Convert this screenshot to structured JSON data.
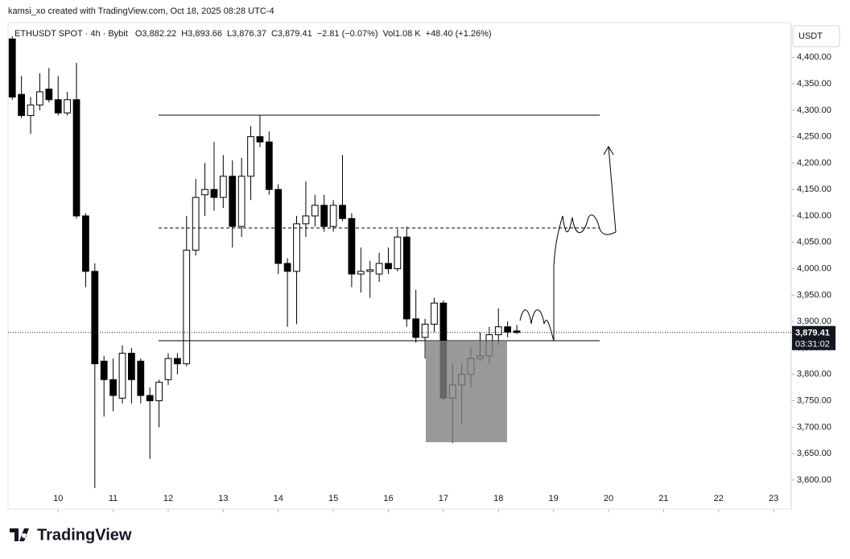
{
  "chart_data": {
    "type": "candlestick",
    "credit": "kamsi_xo created with TradingView.com, Oct 18, 2025 08:28 UTC-4",
    "title": "ETHUSDT SPOT · 4h · Bybit",
    "header_stats": [
      "O3,882.22",
      "H3,893.66",
      "L3,876.37",
      "C3,879.41",
      "−2.81 (−0.07%)",
      "Vol1.08 K",
      "+48.40 (+1.26%)"
    ],
    "currency": "USDT",
    "logo": "TradingView",
    "last_price": {
      "value": 3879.41,
      "label": "3,879.41"
    },
    "countdown": "03:31:02",
    "up_color": "#ffffff",
    "down_color": "#000000",
    "x": [
      9.1667,
      9.3333,
      9.5,
      9.6667,
      9.8333,
      10,
      10.1667,
      10.3333,
      10.5,
      10.6667,
      10.8333,
      11,
      11.1667,
      11.3333,
      11.5,
      11.6667,
      11.8333,
      12,
      12.1667,
      12.3333,
      12.5,
      12.6667,
      12.8333,
      13,
      13.1667,
      13.3333,
      13.5,
      13.6667,
      13.8333,
      14,
      14.1667,
      14.3333,
      14.5,
      14.6667,
      14.8333,
      15,
      15.1667,
      15.3333,
      15.5,
      15.6667,
      15.8333,
      16,
      16.1667,
      16.3333,
      16.5,
      16.6667,
      16.8333,
      17,
      17.1667,
      17.3333,
      17.5,
      17.6667,
      17.8333,
      18,
      18.1667,
      18.3333
    ],
    "open": [
      4435,
      4330,
      4290,
      4310,
      4340,
      4320,
      4295,
      4320,
      4100,
      3995,
      3825,
      3790,
      3755,
      3840,
      3825,
      3760,
      3750,
      3790,
      3830,
      3820,
      4035,
      4140,
      4150,
      4135,
      4175,
      4080,
      4175,
      4250,
      4240,
      4150,
      4010,
      3995,
      4085,
      4100,
      4120,
      4080,
      4120,
      4095,
      3990,
      3995,
      3990,
      4010,
      4000,
      4060,
      3905,
      3870,
      3895,
      3935,
      3755,
      3780,
      3800,
      3830,
      3835,
      3875,
      3890,
      3882.22
    ],
    "high": [
      4440,
      4365,
      4325,
      4370,
      4380,
      4365,
      4335,
      4390,
      4105,
      4010,
      3835,
      3830,
      3855,
      3850,
      3830,
      3775,
      3790,
      3840,
      3840,
      4100,
      4170,
      4200,
      4240,
      4215,
      4205,
      4210,
      4270,
      4290,
      4260,
      4160,
      4020,
      4100,
      4165,
      4140,
      4140,
      4130,
      4215,
      4105,
      4040,
      4015,
      4030,
      4040,
      4075,
      4080,
      3960,
      3905,
      3945,
      3940,
      3820,
      3820,
      3850,
      3880,
      3890,
      3925,
      3900,
      3893.66
    ],
    "low": [
      4320,
      4285,
      4255,
      4300,
      4315,
      4290,
      4290,
      4095,
      3965,
      3585,
      3720,
      3730,
      3745,
      3745,
      3745,
      3640,
      3700,
      3780,
      3800,
      3815,
      4025,
      4100,
      4110,
      4115,
      4040,
      4060,
      4130,
      4230,
      4140,
      3990,
      3890,
      3895,
      4060,
      4080,
      4070,
      4070,
      4090,
      3965,
      3955,
      3945,
      3975,
      3990,
      3995,
      3890,
      3860,
      3830,
      3880,
      3750,
      3670,
      3705,
      3775,
      3825,
      3820,
      3855,
      3870,
      3876.37
    ],
    "close": [
      4325,
      4290,
      4310,
      4335,
      4320,
      4295,
      4320,
      4100,
      3995,
      3820,
      3790,
      3760,
      3840,
      3790,
      3760,
      3750,
      3785,
      3830,
      3820,
      4035,
      4135,
      4150,
      4135,
      4175,
      4080,
      4175,
      4250,
      4240,
      4150,
      4010,
      3995,
      4085,
      4100,
      4120,
      4080,
      4120,
      4095,
      3990,
      3995,
      3998,
      4010,
      4000,
      4060,
      3905,
      3870,
      3895,
      3935,
      3755,
      3780,
      3800,
      3830,
      3835,
      3875,
      3890,
      3880,
      3879.41
    ],
    "xlim": [
      9.09,
      23.32
    ],
    "xticks": [
      10,
      11,
      12,
      13,
      14,
      15,
      16,
      17,
      18,
      19,
      20,
      21,
      22,
      23
    ],
    "ylim": [
      3545,
      4466
    ],
    "yticks": [
      {
        "value": 3600,
        "label": "3,600.00"
      },
      {
        "value": 3650,
        "label": "3,650.00"
      },
      {
        "value": 3700,
        "label": "3,700.00"
      },
      {
        "value": 3750,
        "label": "3,750.00"
      },
      {
        "value": 3800,
        "label": "3,800.00"
      },
      {
        "value": 3850,
        "label": "3,850.00"
      },
      {
        "value": 3900,
        "label": "3,900.00"
      },
      {
        "value": 3950,
        "label": "3,950.00"
      },
      {
        "value": 4000,
        "label": "4,000.00"
      },
      {
        "value": 4050,
        "label": "4,050.00"
      },
      {
        "value": 4100,
        "label": "4,100.00"
      },
      {
        "value": 4150,
        "label": "4,150.00"
      },
      {
        "value": 4200,
        "label": "4,200.00"
      },
      {
        "value": 4250,
        "label": "4,250.00"
      },
      {
        "value": 4300,
        "label": "4,300.00"
      },
      {
        "value": 4350,
        "label": "4,350.00"
      },
      {
        "value": 4400,
        "label": "4,400.00"
      }
    ]
  }
}
